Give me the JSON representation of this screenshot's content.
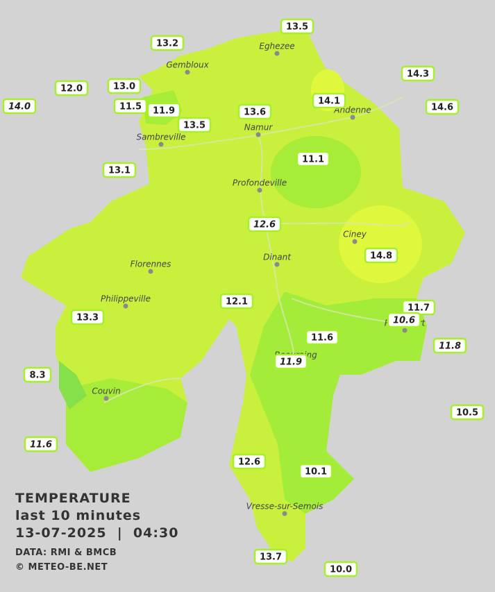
{
  "title": "TEMPERATURE",
  "subtitle": "last 10 minutes",
  "datetime": "13-07-2025  |  04:30",
  "source": "DATA: RMI & BMCB",
  "copyright": "© METEO-BE.NET",
  "cities": [
    "Eghezee",
    "Gembloux",
    "Andenne",
    "Namur",
    "Sambreville",
    "Profondeville",
    "Ciney",
    "Dinant",
    "Florennes",
    "Philippeville",
    "Rochefort",
    "Beauraing",
    "Couvin",
    "Vresse-sur-Semois"
  ],
  "stations": [
    {
      "label": "13.5",
      "italic": false
    },
    {
      "label": "13.2",
      "italic": false
    },
    {
      "label": "14.3",
      "italic": false
    },
    {
      "label": "12.0",
      "italic": false
    },
    {
      "label": "13.0",
      "italic": false
    },
    {
      "label": "14.1",
      "italic": false
    },
    {
      "label": "14.0",
      "italic": true
    },
    {
      "label": "11.5",
      "italic": false
    },
    {
      "label": "11.9",
      "italic": false
    },
    {
      "label": "13.6",
      "italic": false
    },
    {
      "label": "14.6",
      "italic": false
    },
    {
      "label": "13.5",
      "italic": false
    },
    {
      "label": "11.1",
      "italic": false
    },
    {
      "label": "13.1",
      "italic": false
    },
    {
      "label": "12.6",
      "italic": true
    },
    {
      "label": "14.8",
      "italic": false
    },
    {
      "label": "12.1",
      "italic": false
    },
    {
      "label": "11.7",
      "italic": false
    },
    {
      "label": "10.6",
      "italic": true
    },
    {
      "label": "13.3",
      "italic": false
    },
    {
      "label": "11.6",
      "italic": false
    },
    {
      "label": "11.8",
      "italic": true
    },
    {
      "label": "11.9",
      "italic": true
    },
    {
      "label": "8.3",
      "italic": false
    },
    {
      "label": "10.5",
      "italic": false
    },
    {
      "label": "11.6",
      "italic": true
    },
    {
      "label": "12.6",
      "italic": false
    },
    {
      "label": "10.1",
      "italic": false
    },
    {
      "label": "13.7",
      "italic": false
    },
    {
      "label": "10.0",
      "italic": false
    }
  ]
}
